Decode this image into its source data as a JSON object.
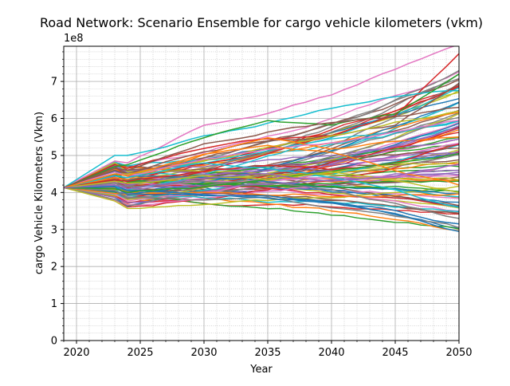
{
  "chart_data": {
    "type": "line",
    "title": "Road Network: Scenario Ensemble for cargo vehicle kilometers (vkm)",
    "xlabel": "Year",
    "ylabel": "cargo Vehicle Kilometers (Vkm)",
    "offset_text": "1e8",
    "xlim": [
      2019,
      2050
    ],
    "ylim": [
      0,
      7.95
    ],
    "xticks": [
      2020,
      2025,
      2030,
      2035,
      2040,
      2045,
      2050
    ],
    "xtick_labels": [
      "2020",
      "2025",
      "2030",
      "2035",
      "2040",
      "2045",
      "2050"
    ],
    "yticks": [
      0,
      1,
      2,
      3,
      4,
      5,
      6,
      7
    ],
    "ytick_labels": [
      "0",
      "1",
      "2",
      "3",
      "4",
      "5",
      "6",
      "7"
    ],
    "grid": true,
    "legend": "none",
    "colors": [
      "#1f77b4",
      "#ff7f0e",
      "#2ca02c",
      "#d62728",
      "#9467bd",
      "#8c564b",
      "#e377c2",
      "#7f7f7f",
      "#bcbd22",
      "#17becf"
    ],
    "ensemble": {
      "count": 100,
      "start_year": 2019,
      "start_value": 4.13,
      "shock_year": 2023,
      "shock_end_year": 2024,
      "end_min": 2.95,
      "end_max": 8.0
    },
    "series": [
      {
        "x": [
          2019,
          2023,
          2024,
          2030,
          2035,
          2040,
          2045,
          2050
        ],
        "y": [
          4.13,
          4.05,
          3.87,
          3.8,
          3.85,
          3.6,
          3.35,
          3.05
        ]
      },
      {
        "x": [
          2019,
          2023,
          2024,
          2030,
          2035,
          2040,
          2045,
          2050
        ],
        "y": [
          4.13,
          4.15,
          3.95,
          3.9,
          3.95,
          3.75,
          3.45,
          2.95
        ]
      },
      {
        "x": [
          2019,
          2023,
          2024,
          2030,
          2035,
          2040,
          2045,
          2050
        ],
        "y": [
          4.13,
          4.75,
          4.65,
          5.2,
          5.45,
          5.55,
          6.1,
          7.75
        ]
      },
      {
        "x": [
          2019,
          2023,
          2024,
          2030,
          2035,
          2040,
          2045,
          2050
        ],
        "y": [
          4.13,
          4.85,
          4.8,
          5.8,
          6.15,
          6.65,
          7.35,
          8.0
        ]
      },
      {
        "x": [
          2019,
          2023,
          2024,
          2030,
          2035,
          2040,
          2045,
          2050
        ],
        "y": [
          4.13,
          5.0,
          5.0,
          5.55,
          5.9,
          6.3,
          6.6,
          6.75
        ]
      },
      {
        "x": [
          2019,
          2023,
          2024,
          2030,
          2035,
          2040,
          2045,
          2050
        ],
        "y": [
          4.13,
          4.7,
          4.75,
          5.5,
          6.0,
          5.85,
          6.15,
          7.2
        ]
      },
      {
        "x": [
          2019,
          2023,
          2024,
          2030,
          2035,
          2040,
          2045,
          2050
        ],
        "y": [
          4.13,
          4.6,
          4.5,
          5.1,
          5.4,
          5.5,
          5.8,
          6.95
        ]
      },
      {
        "x": [
          2019,
          2023,
          2024,
          2030,
          2035,
          2040,
          2045,
          2050
        ],
        "y": [
          4.13,
          4.5,
          4.5,
          4.85,
          5.2,
          5.55,
          5.9,
          6.2
        ]
      },
      {
        "x": [
          2019,
          2023,
          2024,
          2030,
          2035,
          2040,
          2045,
          2050
        ],
        "y": [
          4.13,
          4.4,
          4.35,
          5.0,
          5.5,
          5.2,
          5.4,
          5.5
        ]
      },
      {
        "x": [
          2019,
          2023,
          2024,
          2030,
          2035,
          2040,
          2045,
          2050
        ],
        "y": [
          4.13,
          4.3,
          4.2,
          4.5,
          4.6,
          4.9,
          5.25,
          5.8
        ]
      },
      {
        "x": [
          2019,
          2023,
          2024,
          2030,
          2035,
          2040,
          2045,
          2050
        ],
        "y": [
          4.13,
          4.25,
          4.15,
          4.3,
          4.25,
          4.05,
          3.7,
          3.3
        ]
      },
      {
        "x": [
          2019,
          2023,
          2024,
          2030,
          2035,
          2040,
          2045,
          2050
        ],
        "y": [
          4.13,
          4.2,
          4.05,
          4.0,
          3.9,
          3.75,
          3.55,
          3.15
        ]
      },
      {
        "x": [
          2019,
          2023,
          2024,
          2030,
          2035,
          2040,
          2045,
          2050
        ],
        "y": [
          4.13,
          4.35,
          4.3,
          4.6,
          4.75,
          4.6,
          4.8,
          5.3
        ]
      },
      {
        "x": [
          2019,
          2023,
          2024,
          2030,
          2035,
          2040,
          2045,
          2050
        ],
        "y": [
          4.13,
          4.55,
          4.45,
          4.9,
          5.15,
          5.3,
          5.6,
          5.95
        ]
      },
      {
        "x": [
          2019,
          2023,
          2024,
          2030,
          2035,
          2040,
          2045,
          2050
        ],
        "y": [
          4.13,
          4.45,
          4.4,
          4.8,
          4.7,
          4.4,
          4.05,
          3.6
        ]
      },
      {
        "x": [
          2019,
          2023,
          2024,
          2030,
          2035,
          2040,
          2045,
          2050
        ],
        "y": [
          4.13,
          4.1,
          4.0,
          4.15,
          4.35,
          4.55,
          4.8,
          5.05
        ]
      },
      {
        "x": [
          2019,
          2023,
          2024,
          2030,
          2035,
          2040,
          2045,
          2050
        ],
        "y": [
          4.13,
          4.65,
          4.6,
          5.3,
          5.65,
          5.9,
          6.05,
          6.3
        ]
      },
      {
        "x": [
          2019,
          2023,
          2024,
          2030,
          2035,
          2040,
          2045,
          2050
        ],
        "y": [
          4.13,
          4.3,
          4.25,
          4.45,
          4.35,
          4.55,
          4.3,
          4.0
        ]
      },
      {
        "x": [
          2019,
          2023,
          2024,
          2030,
          2035,
          2040,
          2045,
          2050
        ],
        "y": [
          4.13,
          4.5,
          4.45,
          5.05,
          5.25,
          5.05,
          4.6,
          4.2
        ]
      },
      {
        "x": [
          2019,
          2023,
          2024,
          2030,
          2035,
          2040,
          2045,
          2050
        ],
        "y": [
          4.13,
          4.2,
          4.1,
          4.4,
          4.5,
          4.3,
          4.45,
          4.75
        ]
      }
    ]
  }
}
